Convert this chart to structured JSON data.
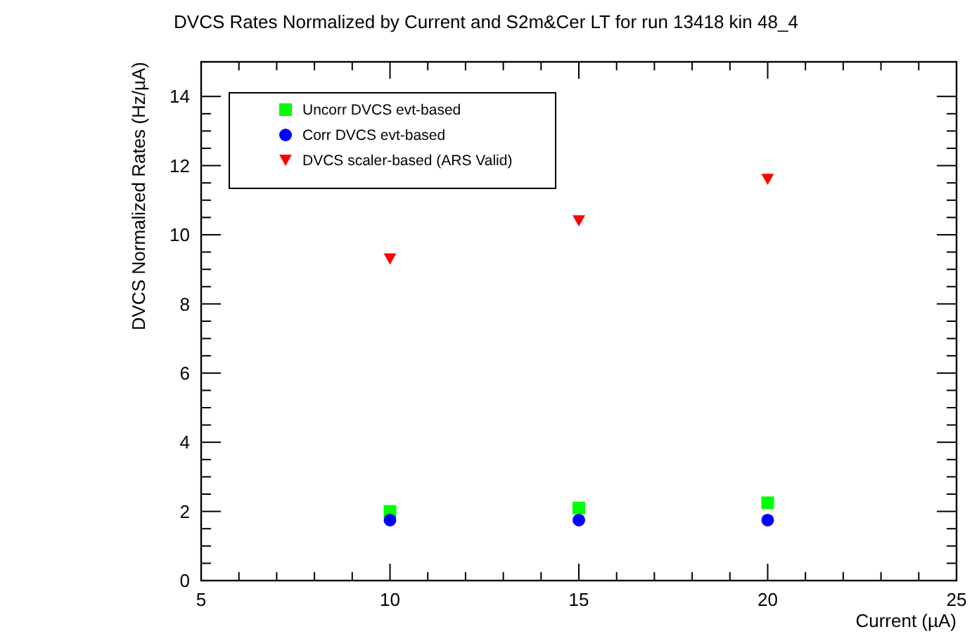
{
  "chart_data": {
    "type": "scatter",
    "title": "DVCS Rates Normalized by Current and S2m&Cer LT for run 13418 kin 48_4",
    "xlabel": "Current (µA)",
    "ylabel": "DVCS Normalized Rates (Hz/µA)",
    "x": [
      10,
      15,
      20
    ],
    "series": [
      {
        "name": "Uncorr DVCS evt-based",
        "color": "#00ff00",
        "marker": "square",
        "values": [
          2.0,
          2.1,
          2.25
        ]
      },
      {
        "name": "Corr DVCS evt-based",
        "color": "#0000ff",
        "marker": "circle",
        "values": [
          1.75,
          1.75,
          1.75
        ]
      },
      {
        "name": "DVCS scaler-based (ARS Valid)",
        "color": "#ff0000",
        "marker": "triangle",
        "values": [
          9.3,
          10.4,
          11.6
        ]
      }
    ],
    "xlim": [
      5,
      25
    ],
    "xticks": [
      5,
      10,
      15,
      20,
      25
    ],
    "ylim": [
      0,
      15
    ],
    "yticks": [
      0,
      2,
      4,
      6,
      8,
      10,
      12,
      14
    ],
    "grid": false,
    "legend": "top left"
  }
}
